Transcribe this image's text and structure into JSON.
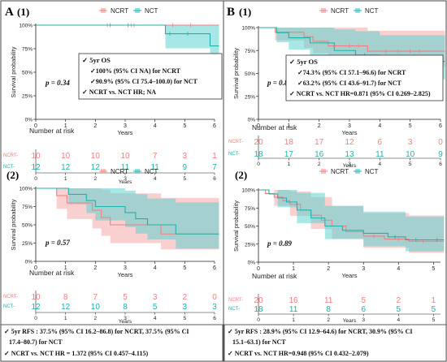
{
  "colors": {
    "ncrt": "#f08080",
    "nct": "#20b2aa",
    "ncrt_fill": "#f4a7a7",
    "nct_fill": "#5fd3d0",
    "border": "#333333"
  },
  "panels": {
    "A": {
      "label": "A",
      "sub1": "(1)",
      "sub2": "(2)"
    },
    "B": {
      "label": "B",
      "sub1": "(1)",
      "sub2": "(2)"
    }
  },
  "legend": {
    "ncrt": "NCRT",
    "nct": "NCT"
  },
  "ylabel": "Survival probability",
  "xlabel": "Years",
  "risk_title": "Number at risk",
  "risk_row_labels": {
    "ncrt": "NCRT",
    "nct": "NCT"
  },
  "y_ticks": [
    "0%",
    "25%",
    "50%",
    "75%",
    "100%"
  ],
  "pvalues": {
    "A1": "p = 0.34",
    "B1": "p = 0.82",
    "A2": "p = 0.57",
    "B2": "p = 0.89"
  },
  "boxes": {
    "A1": {
      "title": "5yr OS",
      "line1": "100% (95% CI NA) for NCRT",
      "line2": "90.9% (95% CI 75.4–100.0) for NCT",
      "line3": "NCRT vs. NCT HR; NA"
    },
    "B1": {
      "title": "5yr OS",
      "line1": "74.3% (95% CI 57.1–96.6) for NCRT",
      "line2": "63.2% (95% CI 43.6–91.7) for NCT",
      "line3": "NCRT vs. NCT HR=0.871 (95% CI 0.269–2.825)"
    },
    "A2": {
      "line1": "5yr RFS : 37.5% (95% CI 16.2–86.8) for NCRT, 37.5% (95% CI",
      "line2": "17.4–80.7) for NCT",
      "line3": "NCRT vs. NCT HR = 1.372 (95% CI 0.457–4.115)"
    },
    "B2": {
      "line1": "5yr RFS : 28.9% (95% CI 12.9–64.6) for NCRT,  30.9% (95% CI",
      "line2": "15.1–63.1) for NCT",
      "line3": "NCRT vs. NCT HR=0.948 (95% CI 0.432–2.079)"
    }
  },
  "chart_data": [
    {
      "id": "A1",
      "type": "line",
      "xlabel": "Years",
      "ylabel": "Survival probability",
      "xlim": [
        0,
        6
      ],
      "x_ticks": [
        0,
        1,
        2,
        3,
        4,
        5,
        6
      ],
      "ylim": [
        0,
        1
      ],
      "series": [
        {
          "name": "NCRT",
          "steps": [
            [
              0,
              1
            ],
            [
              6.3,
              1
            ]
          ],
          "ci": [
            [
              0,
              1,
              1
            ],
            [
              6.3,
              1,
              1
            ]
          ],
          "censors": [
            2.4,
            3.2,
            3.3,
            4.6,
            5.2
          ]
        },
        {
          "name": "NCT",
          "steps": [
            [
              0,
              1
            ],
            [
              4.35,
              0.909
            ],
            [
              5.85,
              0.78
            ],
            [
              6.3,
              0.78
            ]
          ],
          "ci": [
            [
              0,
              1,
              1
            ],
            [
              4.35,
              0.754,
              1
            ],
            [
              5.85,
              0.58,
              1
            ],
            [
              6.3,
              0.58,
              1
            ]
          ],
          "censors": [
            2.5,
            3.1,
            4.5,
            5.1
          ]
        }
      ],
      "risk": {
        "x": [
          0,
          1,
          2,
          3,
          4,
          5,
          6
        ],
        "NCRT": [
          10,
          10,
          10,
          10,
          7,
          3,
          1
        ],
        "NCT": [
          12,
          12,
          12,
          11,
          11,
          9,
          7
        ]
      }
    },
    {
      "id": "B1",
      "type": "line",
      "xlabel": "Years",
      "ylabel": "Survival probability",
      "xlim": [
        0,
        6
      ],
      "x_ticks": [
        0,
        1,
        2,
        3,
        4,
        5,
        6
      ],
      "ylim": [
        0,
        1
      ],
      "series": [
        {
          "name": "NCRT",
          "steps": [
            [
              0,
              1
            ],
            [
              0.55,
              0.95
            ],
            [
              1.5,
              0.9
            ],
            [
              1.8,
              0.85
            ],
            [
              2.3,
              0.8
            ],
            [
              3.6,
              0.743
            ],
            [
              6.3,
              0.743
            ]
          ],
          "ci": [
            [
              0,
              1,
              1
            ],
            [
              0.55,
              0.86,
              1
            ],
            [
              1.5,
              0.78,
              1
            ],
            [
              1.8,
              0.72,
              1
            ],
            [
              2.3,
              0.65,
              1
            ],
            [
              3.6,
              0.571,
              0.966
            ],
            [
              6.3,
              0.571,
              0.966
            ]
          ],
          "censors": [
            3.0,
            3.3,
            4.2,
            4.6,
            5.0,
            5.3
          ]
        },
        {
          "name": "NCT",
          "steps": [
            [
              0,
              1
            ],
            [
              0.6,
              0.944
            ],
            [
              1.0,
              0.889
            ],
            [
              1.7,
              0.833
            ],
            [
              2.5,
              0.75
            ],
            [
              3.2,
              0.7
            ],
            [
              4.0,
              0.632
            ],
            [
              6.3,
              0.632
            ]
          ],
          "ci": [
            [
              0,
              1,
              1
            ],
            [
              0.6,
              0.84,
              1
            ],
            [
              1.0,
              0.76,
              1
            ],
            [
              1.7,
              0.68,
              1
            ],
            [
              2.5,
              0.56,
              0.98
            ],
            [
              3.2,
              0.5,
              0.96
            ],
            [
              4.0,
              0.436,
              0.917
            ],
            [
              6.3,
              0.436,
              0.917
            ]
          ],
          "censors": [
            3.5,
            4.4,
            5.5,
            6.0
          ]
        }
      ],
      "risk": {
        "x": [
          0,
          1,
          2,
          3,
          4,
          5,
          6
        ],
        "NCRT": [
          20,
          18,
          17,
          12,
          6,
          3,
          0
        ],
        "NCT": [
          18,
          17,
          16,
          13,
          11,
          10,
          9
        ]
      }
    },
    {
      "id": "A2",
      "type": "line",
      "xlabel": "Years",
      "ylabel": "Survival probability",
      "xlim": [
        0,
        6
      ],
      "x_ticks": [
        0,
        1,
        2,
        3,
        4,
        5,
        6
      ],
      "ylim": [
        0,
        1
      ],
      "series": [
        {
          "name": "NCRT",
          "steps": [
            [
              0,
              1
            ],
            [
              0.7,
              0.9
            ],
            [
              1.05,
              0.8
            ],
            [
              1.9,
              0.7
            ],
            [
              2.2,
              0.6
            ],
            [
              2.5,
              0.5
            ],
            [
              4.2,
              0.375
            ],
            [
              6.3,
              0.375
            ]
          ],
          "ci": [
            [
              0,
              1,
              1
            ],
            [
              0.7,
              0.72,
              1
            ],
            [
              1.05,
              0.58,
              1
            ],
            [
              1.9,
              0.45,
              1
            ],
            [
              2.2,
              0.35,
              0.98
            ],
            [
              2.5,
              0.25,
              0.93
            ],
            [
              4.2,
              0.162,
              0.868
            ],
            [
              6.3,
              0.162,
              0.868
            ]
          ],
          "censors": []
        },
        {
          "name": "NCT",
          "steps": [
            [
              0,
              1
            ],
            [
              1.1,
              0.917
            ],
            [
              1.7,
              0.833
            ],
            [
              2.0,
              0.75
            ],
            [
              3.0,
              0.667
            ],
            [
              3.35,
              0.583
            ],
            [
              3.75,
              0.5
            ],
            [
              4.7,
              0.375
            ],
            [
              6.3,
              0.375
            ]
          ],
          "ci": [
            [
              0,
              1,
              1
            ],
            [
              1.1,
              0.78,
              1
            ],
            [
              1.7,
              0.66,
              1
            ],
            [
              2.0,
              0.56,
              1
            ],
            [
              3.0,
              0.47,
              0.97
            ],
            [
              3.35,
              0.38,
              0.92
            ],
            [
              3.75,
              0.3,
              0.86
            ],
            [
              4.7,
              0.174,
              0.807
            ],
            [
              6.3,
              0.174,
              0.807
            ]
          ],
          "censors": []
        }
      ],
      "risk": {
        "x": [
          0,
          1,
          2,
          3,
          4,
          5,
          6
        ],
        "NCRT": [
          10,
          8,
          7,
          5,
          3,
          2,
          0
        ],
        "NCT": [
          12,
          12,
          10,
          8,
          5,
          3,
          3
        ]
      }
    },
    {
      "id": "B2",
      "type": "line",
      "xlabel": "Years",
      "ylabel": "Survival probability",
      "xlim": [
        0,
        5.2
      ],
      "x_ticks": [
        0,
        1,
        2,
        3,
        4,
        5
      ],
      "ylim": [
        0,
        1
      ],
      "series": [
        {
          "name": "NCRT",
          "steps": [
            [
              0,
              1
            ],
            [
              0.2,
              0.95
            ],
            [
              0.45,
              0.9
            ],
            [
              0.7,
              0.85
            ],
            [
              0.9,
              0.8
            ],
            [
              1.2,
              0.72
            ],
            [
              1.5,
              0.65
            ],
            [
              1.8,
              0.58
            ],
            [
              2.1,
              0.5
            ],
            [
              2.5,
              0.42
            ],
            [
              3.0,
              0.36
            ],
            [
              3.6,
              0.32
            ],
            [
              4.3,
              0.289
            ],
            [
              5.3,
              0.289
            ]
          ],
          "ci": [
            [
              0,
              1,
              1
            ],
            [
              0.45,
              0.78,
              1
            ],
            [
              0.9,
              0.64,
              0.98
            ],
            [
              1.5,
              0.46,
              0.9
            ],
            [
              2.1,
              0.32,
              0.78
            ],
            [
              3.0,
              0.2,
              0.68
            ],
            [
              4.3,
              0.129,
              0.646
            ],
            [
              5.3,
              0.129,
              0.646
            ]
          ],
          "censors": [
            3.3,
            4.0,
            4.7
          ]
        },
        {
          "name": "NCT",
          "steps": [
            [
              0,
              1
            ],
            [
              0.3,
              0.944
            ],
            [
              0.55,
              0.889
            ],
            [
              0.8,
              0.833
            ],
            [
              1.1,
              0.722
            ],
            [
              1.5,
              0.611
            ],
            [
              1.9,
              0.5
            ],
            [
              2.4,
              0.44
            ],
            [
              3.0,
              0.4
            ],
            [
              3.7,
              0.35
            ],
            [
              4.2,
              0.309
            ],
            [
              5.3,
              0.309
            ]
          ],
          "ci": [
            [
              0,
              1,
              1
            ],
            [
              0.55,
              0.76,
              1
            ],
            [
              1.1,
              0.54,
              0.96
            ],
            [
              1.9,
              0.32,
              0.78
            ],
            [
              3.0,
              0.22,
              0.7
            ],
            [
              4.2,
              0.151,
              0.631
            ],
            [
              5.3,
              0.151,
              0.631
            ]
          ],
          "censors": [
            3.9,
            4.5,
            5.1
          ]
        }
      ],
      "risk": {
        "x": [
          0,
          1,
          2,
          3,
          4,
          5
        ],
        "NCRT": [
          20,
          16,
          11,
          5,
          2,
          1
        ],
        "NCT": [
          18,
          11,
          8,
          6,
          5,
          5
        ]
      }
    }
  ]
}
